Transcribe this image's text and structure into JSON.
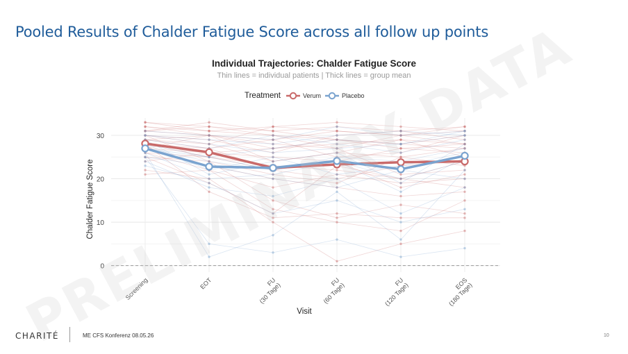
{
  "slide": {
    "title": "Pooled Results of Chalder Fatigue Score across all follow up points",
    "footer_logo": "CHARITÉ",
    "footer_text": "ME CFS Konferenz 08.05.26",
    "page_number": "10",
    "watermark": "PRELIMINARY DATA"
  },
  "chart_data": {
    "type": "line",
    "title": "Individual Trajectories: Chalder Fatigue Score",
    "subtitle": "Thin lines = individual patients | Thick lines = group mean",
    "xlabel": "Visit",
    "ylabel": "Chalder Fatigue Score",
    "categories": [
      "Screening",
      "EOT",
      "FU (30 Tage)",
      "FU (60 Tage)",
      "FU (120 Tage)",
      "EOS (180 Tage)"
    ],
    "ylim": [
      -1.5,
      34
    ],
    "yticks": [
      0,
      10,
      20,
      30
    ],
    "reference_line": 0,
    "grid": true,
    "legend": {
      "title": "Treatment",
      "position": "top",
      "items": [
        {
          "label": "Verum",
          "color": "#c96a6a"
        },
        {
          "label": "Placebo",
          "color": "#7aa3cf"
        }
      ]
    },
    "series": [
      {
        "name": "Verum",
        "color": "#c96a6a",
        "values": [
          28.1,
          26.1,
          22.5,
          23.3,
          23.8,
          24.0
        ]
      },
      {
        "name": "Placebo",
        "color": "#7aa3cf",
        "values": [
          27.0,
          22.8,
          22.5,
          24.1,
          22.2,
          25.3
        ]
      }
    ],
    "individual_trajectories": {
      "Verum": [
        [
          31,
          30,
          29,
          31,
          30,
          31
        ],
        [
          33,
          32,
          31,
          32,
          31,
          32
        ],
        [
          30,
          28,
          24,
          26,
          25,
          27
        ],
        [
          29,
          27,
          22,
          20,
          23,
          24
        ],
        [
          27,
          26,
          25,
          24,
          27,
          26
        ],
        [
          26,
          22,
          18,
          21,
          19,
          20
        ],
        [
          32,
          31,
          30,
          29,
          28,
          30
        ],
        [
          25,
          24,
          15,
          11,
          14,
          12
        ],
        [
          28,
          17,
          11,
          12,
          11,
          11
        ],
        [
          24,
          26,
          27,
          28,
          29,
          28
        ],
        [
          30,
          29,
          26,
          30,
          31,
          29
        ],
        [
          22,
          20,
          10,
          1,
          5,
          8
        ],
        [
          31,
          32,
          30,
          27,
          21,
          22
        ],
        [
          29,
          30,
          28,
          27,
          30,
          28
        ],
        [
          27,
          23,
          20,
          18,
          16,
          17
        ],
        [
          33,
          31,
          32,
          33,
          32,
          31
        ],
        [
          28,
          27,
          29,
          25,
          26,
          30
        ],
        [
          26,
          25,
          23,
          22,
          20,
          24
        ],
        [
          30,
          24,
          21,
          19,
          25,
          23
        ],
        [
          32,
          30,
          27,
          29,
          28,
          27
        ],
        [
          21,
          22,
          13,
          10,
          8,
          15
        ],
        [
          29,
          28,
          32,
          31,
          30,
          32
        ],
        [
          25,
          19,
          12,
          23,
          20,
          18
        ],
        [
          31,
          33,
          31,
          29,
          27,
          28
        ],
        [
          27,
          30,
          24,
          26,
          29,
          25
        ],
        [
          28,
          25,
          22,
          24,
          18,
          21
        ]
      ],
      "Placebo": [
        [
          30,
          29,
          28,
          30,
          31,
          30
        ],
        [
          26,
          20,
          21,
          24,
          17,
          25
        ],
        [
          28,
          25,
          27,
          29,
          28,
          31
        ],
        [
          25,
          5,
          3,
          6,
          2,
          4
        ],
        [
          27,
          24,
          22,
          25,
          24,
          27
        ],
        [
          24,
          18,
          16,
          20,
          12,
          18
        ],
        [
          29,
          27,
          30,
          28,
          26,
          29
        ],
        [
          26,
          2,
          7,
          17,
          6,
          22
        ],
        [
          31,
          30,
          29,
          32,
          30,
          31
        ],
        [
          28,
          22,
          25,
          21,
          23,
          26
        ],
        [
          23,
          19,
          12,
          15,
          10,
          13
        ],
        [
          30,
          28,
          26,
          27,
          28,
          30
        ],
        [
          27,
          25,
          22,
          24,
          20,
          24
        ],
        [
          29,
          21,
          24,
          26,
          19,
          28
        ],
        [
          25,
          23,
          20,
          18,
          22,
          20
        ]
      ]
    }
  }
}
